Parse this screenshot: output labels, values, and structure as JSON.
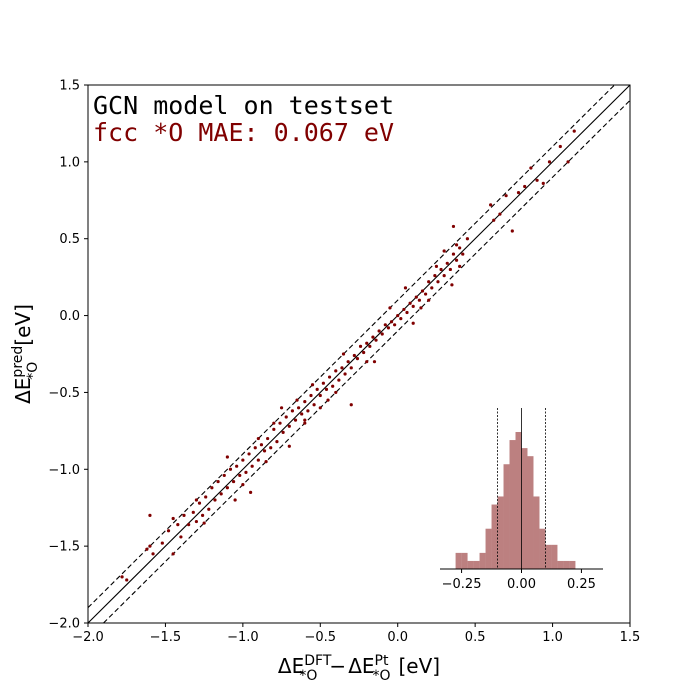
{
  "chart_data": [
    {
      "type": "scatter",
      "title": "",
      "annotations": {
        "line1": "GCN model on testset",
        "line2": "fcc *O MAE:    0.067 eV",
        "line1_color": "#000000",
        "line2_color": "#800000"
      },
      "xlabel": {
        "prefix": "ΔE",
        "sup1": "DFT",
        "sub1": "*O",
        "minus": "−",
        "prefix2": "ΔE",
        "sup2": "Pt",
        "sub2": "*O",
        "unit": "[eV]"
      },
      "ylabel": {
        "prefix": "ΔE",
        "sup": "pred",
        "sub": "*O",
        "unit": "[eV]"
      },
      "xlim": [
        -2.0,
        1.5
      ],
      "ylim": [
        -2.0,
        1.5
      ],
      "xticks": [
        "−2.0",
        "−1.5",
        "−1.0",
        "−0.5",
        "0.0",
        "0.5",
        "1.0",
        "1.5"
      ],
      "yticks": [
        "−2.0",
        "−1.5",
        "−1.0",
        "−0.5",
        "0.0",
        "0.5",
        "1.0",
        "1.5"
      ],
      "xtick_values": [
        -2.0,
        -1.5,
        -1.0,
        -0.5,
        0.0,
        0.5,
        1.0,
        1.5
      ],
      "ytick_values": [
        -2.0,
        -1.5,
        -1.0,
        -0.5,
        0.0,
        0.5,
        1.0,
        1.5
      ],
      "reference_lines": [
        {
          "offset": 0.0,
          "style": "solid"
        },
        {
          "offset": 0.1,
          "style": "dashed"
        },
        {
          "offset": -0.1,
          "style": "dashed"
        }
      ],
      "point_color": "#800000",
      "points": [
        [
          -1.78,
          -1.7
        ],
        [
          -1.75,
          -1.72
        ],
        [
          -1.62,
          -1.52
        ],
        [
          -1.6,
          -1.5
        ],
        [
          -1.58,
          -1.55
        ],
        [
          -1.6,
          -1.3
        ],
        [
          -1.52,
          -1.48
        ],
        [
          -1.48,
          -1.4
        ],
        [
          -1.45,
          -1.32
        ],
        [
          -1.42,
          -1.36
        ],
        [
          -1.4,
          -1.44
        ],
        [
          -1.38,
          -1.3
        ],
        [
          -1.35,
          -1.36
        ],
        [
          -1.32,
          -1.28
        ],
        [
          -1.3,
          -1.34
        ],
        [
          -1.28,
          -1.22
        ],
        [
          -1.26,
          -1.3
        ],
        [
          -1.24,
          -1.18
        ],
        [
          -1.22,
          -1.26
        ],
        [
          -1.2,
          -1.12
        ],
        [
          -1.18,
          -1.2
        ],
        [
          -1.16,
          -1.08
        ],
        [
          -1.14,
          -1.16
        ],
        [
          -1.12,
          -1.04
        ],
        [
          -1.1,
          -1.12
        ],
        [
          -1.08,
          -1.0
        ],
        [
          -1.06,
          -1.08
        ],
        [
          -1.04,
          -0.98
        ],
        [
          -1.02,
          -1.04
        ],
        [
          -1.0,
          -0.94
        ],
        [
          -0.98,
          -1.02
        ],
        [
          -0.96,
          -0.9
        ],
        [
          -0.94,
          -0.98
        ],
        [
          -0.92,
          -0.86
        ],
        [
          -0.9,
          -0.94
        ],
        [
          -0.88,
          -0.84
        ],
        [
          -0.86,
          -0.88
        ],
        [
          -0.84,
          -0.8
        ],
        [
          -0.82,
          -0.86
        ],
        [
          -0.8,
          -0.74
        ],
        [
          -0.78,
          -0.82
        ],
        [
          -0.76,
          -0.7
        ],
        [
          -0.74,
          -0.76
        ],
        [
          -0.72,
          -0.66
        ],
        [
          -0.7,
          -0.72
        ],
        [
          -0.68,
          -0.62
        ],
        [
          -0.66,
          -0.68
        ],
        [
          -0.64,
          -0.6
        ],
        [
          -0.62,
          -0.64
        ],
        [
          -0.6,
          -0.56
        ],
        [
          -0.58,
          -0.62
        ],
        [
          -0.56,
          -0.52
        ],
        [
          -0.54,
          -0.58
        ],
        [
          -0.52,
          -0.48
        ],
        [
          -0.5,
          -0.52
        ],
        [
          -0.48,
          -0.44
        ],
        [
          -0.46,
          -0.48
        ],
        [
          -0.44,
          -0.4
        ],
        [
          -0.42,
          -0.46
        ],
        [
          -0.4,
          -0.36
        ],
        [
          -0.38,
          -0.42
        ],
        [
          -0.36,
          -0.34
        ],
        [
          -0.34,
          -0.38
        ],
        [
          -0.32,
          -0.3
        ],
        [
          -0.3,
          -0.34
        ],
        [
          -0.28,
          -0.26
        ],
        [
          -0.26,
          -0.28
        ],
        [
          -0.24,
          -0.2
        ],
        [
          -0.22,
          -0.24
        ],
        [
          -0.2,
          -0.18
        ],
        [
          -0.18,
          -0.2
        ],
        [
          -0.16,
          -0.14
        ],
        [
          -0.14,
          -0.16
        ],
        [
          -0.12,
          -0.1
        ],
        [
          -0.1,
          -0.12
        ],
        [
          -0.08,
          -0.06
        ],
        [
          -0.06,
          -0.08
        ],
        [
          -0.04,
          -0.04
        ],
        [
          -0.02,
          -0.06
        ],
        [
          0.0,
          0.0
        ],
        [
          0.02,
          -0.02
        ],
        [
          0.04,
          0.04
        ],
        [
          0.06,
          0.02
        ],
        [
          0.08,
          0.08
        ],
        [
          0.1,
          0.06
        ],
        [
          0.12,
          0.12
        ],
        [
          0.14,
          0.1
        ],
        [
          0.16,
          0.16
        ],
        [
          0.18,
          0.14
        ],
        [
          0.2,
          0.22
        ],
        [
          0.22,
          0.18
        ],
        [
          0.24,
          0.26
        ],
        [
          0.26,
          0.22
        ],
        [
          0.28,
          0.3
        ],
        [
          0.3,
          0.26
        ],
        [
          0.32,
          0.34
        ],
        [
          0.34,
          0.3
        ],
        [
          0.36,
          0.4
        ],
        [
          0.38,
          0.36
        ],
        [
          0.4,
          0.44
        ],
        [
          0.42,
          0.4
        ],
        [
          0.36,
          0.58
        ],
        [
          0.38,
          0.46
        ],
        [
          0.35,
          0.2
        ],
        [
          0.4,
          0.32
        ],
        [
          0.6,
          0.72
        ],
        [
          0.62,
          0.62
        ],
        [
          0.66,
          0.66
        ],
        [
          0.7,
          0.78
        ],
        [
          0.74,
          0.55
        ],
        [
          0.78,
          0.8
        ],
        [
          0.82,
          0.84
        ],
        [
          0.86,
          0.96
        ],
        [
          0.9,
          0.88
        ],
        [
          0.94,
          0.86
        ],
        [
          0.98,
          1.0
        ],
        [
          1.05,
          1.1
        ],
        [
          1.1,
          1.0
        ],
        [
          1.14,
          1.2
        ],
        [
          -0.15,
          -0.3
        ],
        [
          -0.3,
          -0.58
        ],
        [
          -0.6,
          -0.68
        ],
        [
          -0.7,
          -0.85
        ],
        [
          -0.75,
          -0.6
        ],
        [
          -0.95,
          -1.15
        ],
        [
          -1.05,
          -1.2
        ],
        [
          -1.1,
          -0.92
        ],
        [
          -1.25,
          -1.35
        ],
        [
          -0.55,
          -0.45
        ],
        [
          -0.45,
          -0.55
        ],
        [
          -0.85,
          -0.95
        ],
        [
          -0.65,
          -0.55
        ],
        [
          0.05,
          0.18
        ],
        [
          -0.05,
          0.05
        ],
        [
          0.1,
          -0.05
        ],
        [
          0.25,
          0.32
        ],
        [
          0.15,
          0.05
        ],
        [
          -0.2,
          -0.3
        ],
        [
          -0.35,
          -0.25
        ],
        [
          -0.5,
          -0.6
        ],
        [
          -0.8,
          -0.7
        ],
        [
          -1.0,
          -1.1
        ],
        [
          -1.3,
          -1.2
        ],
        [
          -1.45,
          -1.55
        ],
        [
          -0.9,
          -0.8
        ],
        [
          -0.6,
          -0.7
        ],
        [
          -0.4,
          -0.5
        ],
        [
          0.3,
          0.42
        ],
        [
          0.45,
          0.5
        ],
        [
          0.2,
          0.1
        ]
      ],
      "inset": {
        "type": "histogram",
        "xticks": [
          "−0.25",
          "0.00",
          "0.25"
        ],
        "xtick_values": [
          -0.25,
          0.0,
          0.25
        ],
        "xlim": [
          -0.34,
          0.34
        ],
        "bin_width": 0.025,
        "bin_starts": [
          -0.275,
          -0.25,
          -0.225,
          -0.2,
          -0.175,
          -0.15,
          -0.125,
          -0.1,
          -0.075,
          -0.05,
          -0.025,
          0.0,
          0.025,
          0.05,
          0.075,
          0.1,
          0.125,
          0.15,
          0.175,
          0.2
        ],
        "counts": [
          2,
          2,
          1,
          1,
          2,
          5,
          8,
          9,
          13,
          16,
          17,
          15,
          14,
          9,
          5,
          3,
          3,
          1,
          1,
          1
        ],
        "color": "#bc8080",
        "vlines": [
          {
            "x": -0.1,
            "style": "dotted"
          },
          {
            "x": 0.0,
            "style": "solid"
          },
          {
            "x": 0.1,
            "style": "dotted"
          }
        ]
      }
    }
  ]
}
